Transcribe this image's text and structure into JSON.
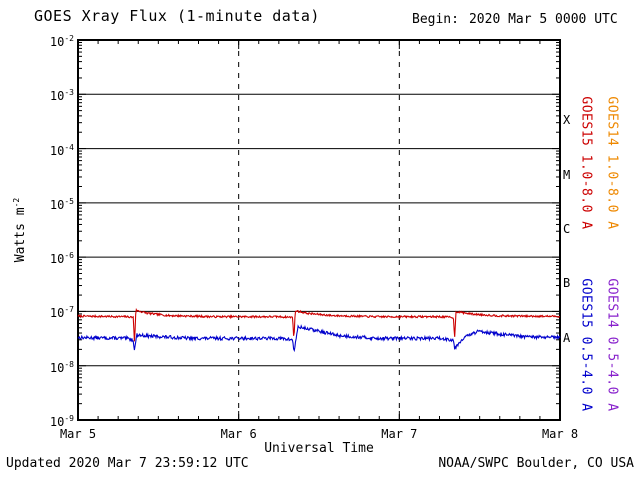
{
  "header": {
    "title": "GOES Xray Flux (1-minute data)",
    "begin_label": "Begin:",
    "begin_value": "2020 Mar 5 0000 UTC"
  },
  "footer": {
    "updated": "Updated 2020 Mar 7 23:59:12 UTC",
    "source": "NOAA/SWPC Boulder, CO USA"
  },
  "chart_data": {
    "type": "line",
    "title": "GOES Xray Flux (1-minute data)",
    "xlabel": "Universal Time",
    "ylabel": {
      "text": "Watts m",
      "exponent": "-2"
    },
    "x_range_days": 3,
    "x_ticks": [
      {
        "day": 0,
        "label": "Mar 5"
      },
      {
        "day": 1,
        "label": "Mar 6"
      },
      {
        "day": 2,
        "label": "Mar 7"
      },
      {
        "day": 3,
        "label": "Mar 8"
      }
    ],
    "minor_x_tick_hours": 3,
    "y_tick_exponents": [
      -2,
      -3,
      -4,
      -5,
      -6,
      -7,
      -8,
      -9
    ],
    "ylim": [
      1e-09,
      0.01
    ],
    "grid": {
      "h_decades": [
        -3,
        -4,
        -5,
        -6,
        -7,
        -8
      ],
      "v_days": [
        1,
        2
      ],
      "v_style": "dashed"
    },
    "flux_class_labels": [
      {
        "label": "X",
        "log_center": -3.5
      },
      {
        "label": "M",
        "log_center": -4.5
      },
      {
        "label": "C",
        "log_center": -5.5
      },
      {
        "label": "B",
        "log_center": -6.5
      },
      {
        "label": "A",
        "log_center": -7.5
      }
    ],
    "axis_color": "#000000",
    "series": [
      {
        "name": "GOES15 0.5-4.0 A",
        "color": "#0000cc",
        "noise": 0.07,
        "seed": 13,
        "keypoints": [
          [
            0.0,
            3.3e-08
          ],
          [
            0.3,
            3.2e-08
          ],
          [
            0.344,
            3e-08
          ],
          [
            0.352,
            1.9e-08
          ],
          [
            0.365,
            3.7e-08
          ],
          [
            0.46,
            3.5e-08
          ],
          [
            0.7,
            3.2e-08
          ],
          [
            1.25,
            3.2e-08
          ],
          [
            1.336,
            3e-08
          ],
          [
            1.344,
            1.8e-08
          ],
          [
            1.37,
            5.2e-08
          ],
          [
            1.46,
            4.6e-08
          ],
          [
            1.62,
            3.6e-08
          ],
          [
            1.85,
            3.2e-08
          ],
          [
            2.25,
            3.2e-08
          ],
          [
            2.336,
            3e-08
          ],
          [
            2.344,
            2.1e-08
          ],
          [
            2.4,
            3.3e-08
          ],
          [
            2.5,
            4.4e-08
          ],
          [
            2.6,
            3.9e-08
          ],
          [
            2.78,
            3.4e-08
          ],
          [
            3.0,
            3.3e-08
          ]
        ]
      },
      {
        "name": "GOES15 1.0-8.0 A",
        "color": "#cc0000",
        "noise": 0.04,
        "seed": 7,
        "keypoints": [
          [
            0.0,
            8.2e-08
          ],
          [
            0.3,
            8e-08
          ],
          [
            0.344,
            7.8e-08
          ],
          [
            0.352,
            2.6e-08
          ],
          [
            0.36,
            1.05e-07
          ],
          [
            0.43,
            9.3e-08
          ],
          [
            0.56,
            8.4e-08
          ],
          [
            0.85,
            8e-08
          ],
          [
            1.25,
            8e-08
          ],
          [
            1.336,
            7.8e-08
          ],
          [
            1.344,
            2.9e-08
          ],
          [
            1.352,
            1.03e-07
          ],
          [
            1.43,
            9.2e-08
          ],
          [
            1.58,
            8.4e-08
          ],
          [
            1.85,
            8e-08
          ],
          [
            2.25,
            8e-08
          ],
          [
            2.336,
            7.8e-08
          ],
          [
            2.344,
            3.1e-08
          ],
          [
            2.352,
            9.9e-08
          ],
          [
            2.46,
            8.9e-08
          ],
          [
            2.62,
            8.3e-08
          ],
          [
            3.0,
            8.1e-08
          ]
        ]
      }
    ],
    "right_axis_labels": [
      {
        "text": "GOES15 1.0-8.0 A",
        "color": "#cc0000",
        "column": 0,
        "half": "top"
      },
      {
        "text": "GOES14 1.0-8.0 A",
        "color": "#ee8800",
        "column": 1,
        "half": "top"
      },
      {
        "text": "GOES15 0.5-4.0 A",
        "color": "#0000cc",
        "column": 0,
        "half": "bottom"
      },
      {
        "text": "GOES14 0.5-4.0 A",
        "color": "#8822cc",
        "column": 1,
        "half": "bottom"
      }
    ]
  }
}
